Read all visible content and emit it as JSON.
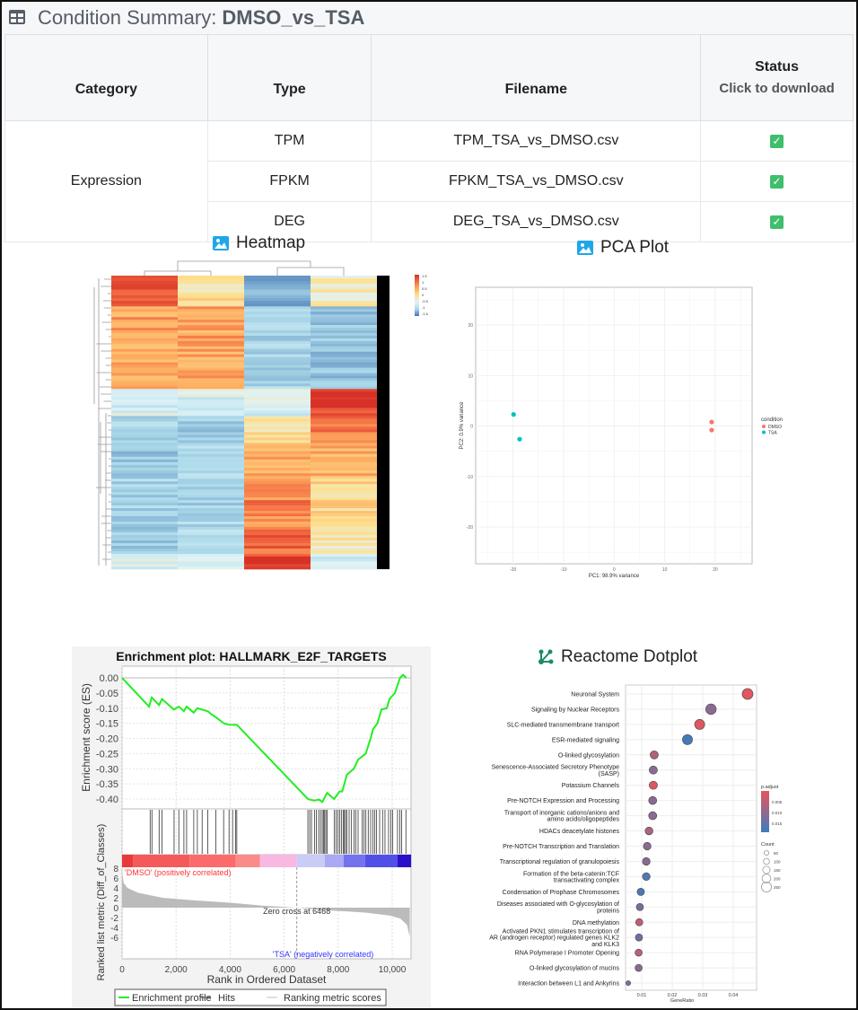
{
  "header": {
    "icon": "table-icon",
    "title_prefix": "Condition Summary: ",
    "title_name": "DMSO_vs_TSA"
  },
  "table": {
    "columns": [
      "Category",
      "Type",
      "Filename",
      "Status"
    ],
    "status_sub": "Click to download",
    "category": "Expression",
    "rows": [
      {
        "type": "TPM",
        "filename": "TPM_TSA_vs_DMSO.csv",
        "status": "checked"
      },
      {
        "type": "FPKM",
        "filename": "FPKM_TSA_vs_DMSO.csv",
        "status": "checked"
      },
      {
        "type": "DEG",
        "filename": "DEG_TSA_vs_DMSO.csv",
        "status": "checked"
      }
    ],
    "check_color": "#3fbf6d"
  },
  "sections": {
    "heatmap": "Heatmap",
    "pca": "PCA Plot",
    "dotplot": "Reactome Dotplot"
  },
  "chart_data": [
    {
      "type": "heatmap",
      "colorbar_ticks": [
        "1.5",
        "1",
        "0.5",
        "0",
        "-0.5",
        "-1",
        "-1.5"
      ],
      "clim": [
        -1.5,
        1.5
      ],
      "columns": 4,
      "row_blocks": [
        {
          "share": 0.105,
          "values": [
            1.3,
            0.3,
            -1.0,
            0.1
          ]
        },
        {
          "share": 0.281,
          "values": [
            0.8,
            0.8,
            -0.6,
            -0.8
          ]
        },
        {
          "share": 0.092,
          "values": [
            -0.2,
            -0.2,
            -0.2,
            1.4
          ]
        },
        {
          "share": 0.092,
          "values": [
            -0.6,
            -0.7,
            0.3,
            1.1
          ]
        },
        {
          "share": 0.122,
          "values": [
            -0.8,
            -0.6,
            0.8,
            0.7
          ]
        },
        {
          "share": 0.164,
          "values": [
            -0.6,
            -0.6,
            1.0,
            0.4
          ]
        },
        {
          "share": 0.092,
          "values": [
            -0.7,
            -0.5,
            1.2,
            0.2
          ]
        },
        {
          "share": 0.052,
          "values": [
            -0.2,
            -0.2,
            1.4,
            -0.2
          ]
        }
      ]
    },
    {
      "type": "scatter",
      "xlabel": "PC1: 98.9% variance",
      "ylabel": "PC2: 0.9% variance",
      "xlim": [
        -27.4,
        27.3
      ],
      "ylim": [
        -27.3,
        27.5
      ],
      "xticks": [
        -20,
        -10,
        0,
        10,
        20
      ],
      "yticks": [
        -20,
        -10,
        0,
        10,
        20
      ],
      "grid": true,
      "legend_title": "condition",
      "legend_position": "right",
      "series": [
        {
          "name": "DMSO",
          "color": "#f8766d",
          "points": [
            [
              19.3,
              0.8
            ],
            [
              19.3,
              -0.8
            ]
          ]
        },
        {
          "name": "TSA",
          "color": "#00bfc4",
          "points": [
            [
              -19.9,
              2.3
            ],
            [
              -18.7,
              -2.6
            ]
          ]
        }
      ]
    },
    {
      "type": "line",
      "title": "Enrichment plot: HALLMARK_E2F_TARGETS",
      "ylabel_top": "Enrichment score (ES)",
      "ylabel_bottom": "Ranked list metric (Diff_of_Classes)",
      "xlabel": "Rank in Ordered Dataset",
      "xlim": [
        0,
        10700
      ],
      "es_ylim": [
        -0.43,
        0.02
      ],
      "metric_ylim": [
        -6.5,
        8
      ],
      "xticks": [
        0,
        2000,
        4000,
        6000,
        8000,
        10000
      ],
      "xtick_labels": [
        "0",
        "2,000",
        "4,000",
        "6,000",
        "8,000",
        "10,000"
      ],
      "es_ticks": [
        "0.00",
        "-0.05",
        "-0.10",
        "-0.15",
        "-0.20",
        "-0.25",
        "-0.30",
        "-0.35",
        "-0.40"
      ],
      "metric_ticks": [
        "8",
        "6",
        "4",
        "2",
        "0",
        "-2",
        "-4",
        "-6"
      ],
      "es_profile": [
        [
          0,
          0
        ],
        [
          1000,
          -0.095
        ],
        [
          1100,
          -0.065
        ],
        [
          1370,
          -0.09
        ],
        [
          1480,
          -0.07
        ],
        [
          1920,
          -0.105
        ],
        [
          2100,
          -0.095
        ],
        [
          2290,
          -0.11
        ],
        [
          2390,
          -0.095
        ],
        [
          2650,
          -0.115
        ],
        [
          2790,
          -0.1
        ],
        [
          2960,
          -0.105
        ],
        [
          3170,
          -0.11
        ],
        [
          3300,
          -0.12
        ],
        [
          3470,
          -0.13
        ],
        [
          3760,
          -0.15
        ],
        [
          3960,
          -0.155
        ],
        [
          4250,
          -0.155
        ],
        [
          6880,
          -0.4
        ],
        [
          7100,
          -0.405
        ],
        [
          7300,
          -0.402
        ],
        [
          7410,
          -0.41
        ],
        [
          7590,
          -0.38
        ],
        [
          7850,
          -0.4
        ],
        [
          8050,
          -0.375
        ],
        [
          8150,
          -0.375
        ],
        [
          8320,
          -0.32
        ],
        [
          8580,
          -0.3
        ],
        [
          8740,
          -0.27
        ],
        [
          9020,
          -0.25
        ],
        [
          9200,
          -0.2
        ],
        [
          9290,
          -0.17
        ],
        [
          9450,
          -0.15
        ],
        [
          9600,
          -0.105
        ],
        [
          9800,
          -0.1
        ],
        [
          9900,
          -0.07
        ],
        [
          10100,
          -0.05
        ],
        [
          10290,
          0.0
        ],
        [
          10400,
          0.01
        ],
        [
          10520,
          0.0
        ]
      ],
      "hits": [
        1040,
        1106,
        1372,
        1482,
        1925,
        2101,
        2289,
        2389,
        2654,
        2787,
        2964,
        3174,
        3473,
        3760,
        3960,
        4092,
        4203,
        4247,
        6879,
        6946,
        7012,
        7122,
        7189,
        7277,
        7344,
        7410,
        7454,
        7498,
        7543,
        7587,
        7853,
        7919,
        7985,
        8052,
        8118,
        8184,
        8228,
        8273,
        8317,
        8406,
        8494,
        8583,
        8649,
        8737,
        8892,
        8958,
        9025,
        9113,
        9202,
        9290,
        9357,
        9423,
        9534,
        9644,
        9733,
        9866,
        9954,
        10020,
        10197,
        10286,
        10352,
        10507
      ],
      "metric_profile": [
        [
          0,
          7.2
        ],
        [
          60,
          5
        ],
        [
          200,
          4
        ],
        [
          600,
          3
        ],
        [
          1500,
          2
        ],
        [
          2600,
          1.5
        ],
        [
          4000,
          1.0
        ],
        [
          5200,
          0.4
        ],
        [
          6468,
          0
        ],
        [
          7500,
          -0.5
        ],
        [
          9000,
          -1.0
        ],
        [
          9900,
          -1.6
        ],
        [
          10300,
          -2.2
        ],
        [
          10550,
          -3.5
        ],
        [
          10650,
          -6
        ]
      ],
      "class_bar": [
        {
          "to": 400,
          "color": "#e83a3a"
        },
        {
          "to": 2500,
          "color": "#f55a5a"
        },
        {
          "to": 4200,
          "color": "#fb6b6b"
        },
        {
          "to": 5100,
          "color": "#fb8a8a"
        },
        {
          "to": 6468,
          "color": "#f8b8e2"
        },
        {
          "to": 7500,
          "color": "#cbcbf8"
        },
        {
          "to": 8200,
          "color": "#a9a9f4"
        },
        {
          "to": 9000,
          "color": "#7373ee"
        },
        {
          "to": 10200,
          "color": "#5050e6"
        },
        {
          "to": 10700,
          "color": "#2a10c8"
        }
      ],
      "annotations": {
        "positive": "'DMSO' (positively correlated)",
        "negative": "'TSA' (negatively correlated)",
        "zero_cross": "Zero cross at 6468"
      },
      "legend": [
        "Enrichment profile",
        "Hits",
        "Ranking metric scores"
      ],
      "colors": {
        "profile": "#22ee22",
        "hits": "#333333",
        "metric": "#bbbbbb",
        "positive": "#ff3333",
        "negative": "#3333ff"
      }
    },
    {
      "type": "scatter",
      "xlabel": "GeneRatio",
      "xlim": [
        0.0048,
        0.0477
      ],
      "xticks": [
        0.01,
        0.02,
        0.03,
        0.04
      ],
      "xtick_labels": [
        "0.01",
        "0.02",
        "0.03",
        "0.04"
      ],
      "grid": true,
      "color_legend": {
        "title": "p.adjust",
        "ticks": [
          "0.005",
          "0.010",
          "0.015"
        ],
        "range": [
          0.001,
          0.019
        ],
        "low_color": "#e8555a",
        "high_color": "#3e7bbf"
      },
      "size_legend": {
        "title": "Count",
        "values": [
          50,
          100,
          150,
          200,
          250
        ]
      },
      "terms": [
        {
          "label": "Neuronal System",
          "gene_ratio": 0.0447,
          "p_adjust": 0.002,
          "count": 270
        },
        {
          "label": "Signaling by Nuclear Receptors",
          "gene_ratio": 0.0327,
          "p_adjust": 0.011,
          "count": 250
        },
        {
          "label": "SLC-mediated transmembrane transport",
          "gene_ratio": 0.029,
          "p_adjust": 0.002,
          "count": 220
        },
        {
          "label": "ESR-mediated signaling",
          "gene_ratio": 0.025,
          "p_adjust": 0.018,
          "count": 220
        },
        {
          "label": "O-linked glycosylation",
          "gene_ratio": 0.0141,
          "p_adjust": 0.007,
          "count": 120
        },
        {
          "label": "Senescence-Associated Secretory Phenotype (SASP)",
          "gene_ratio": 0.0138,
          "p_adjust": 0.011,
          "count": 120
        },
        {
          "label": "Potassium Channels",
          "gene_ratio": 0.0138,
          "p_adjust": 0.002,
          "count": 120
        },
        {
          "label": "Pre-NOTCH Expression and Processing",
          "gene_ratio": 0.0136,
          "p_adjust": 0.011,
          "count": 115
        },
        {
          "label": "Transport of inorganic cations/anions and amino acids/oligopeptides",
          "gene_ratio": 0.0136,
          "p_adjust": 0.011,
          "count": 115
        },
        {
          "label": "HDACs deacetylate histones",
          "gene_ratio": 0.0124,
          "p_adjust": 0.007,
          "count": 105
        },
        {
          "label": "Pre-NOTCH Transcription and Translation",
          "gene_ratio": 0.0118,
          "p_adjust": 0.011,
          "count": 100
        },
        {
          "label": "Transcriptional regulation of granulopoiesis",
          "gene_ratio": 0.0115,
          "p_adjust": 0.011,
          "count": 100
        },
        {
          "label": "Formation of the beta-catenin:TCF transactivating complex",
          "gene_ratio": 0.0115,
          "p_adjust": 0.017,
          "count": 100
        },
        {
          "label": "Condensation of Prophase Chromosomes",
          "gene_ratio": 0.0097,
          "p_adjust": 0.018,
          "count": 85
        },
        {
          "label": "Diseases associated with O-glycosylation of proteins",
          "gene_ratio": 0.0094,
          "p_adjust": 0.014,
          "count": 80
        },
        {
          "label": "DNA methylation",
          "gene_ratio": 0.0092,
          "p_adjust": 0.005,
          "count": 80
        },
        {
          "label": "Activated PKN1 stimulates transcription of AR (androgen receptor) regulated genes KLK2 and KLK3",
          "gene_ratio": 0.0091,
          "p_adjust": 0.014,
          "count": 78
        },
        {
          "label": "RNA Polymerase I Promoter Opening",
          "gene_ratio": 0.009,
          "p_adjust": 0.006,
          "count": 78
        },
        {
          "label": "O-linked glycosylation of mucins",
          "gene_ratio": 0.009,
          "p_adjust": 0.011,
          "count": 78
        },
        {
          "label": "Interaction between L1 and Ankyrins",
          "gene_ratio": 0.0056,
          "p_adjust": 0.012,
          "count": 15
        }
      ]
    }
  ]
}
